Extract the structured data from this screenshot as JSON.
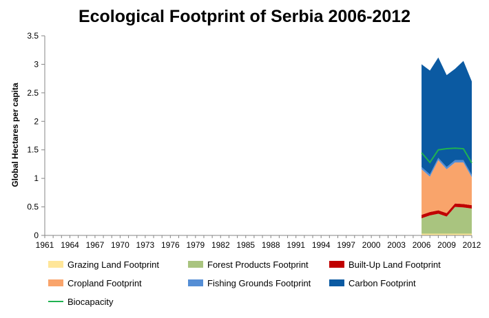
{
  "chart_data": {
    "type": "area",
    "title": "Ecological Footprint of Serbia 2006-2012",
    "ylabel": "Global Hectares per capita",
    "xlabel": "",
    "ylim": [
      0,
      3.5
    ],
    "yticks": [
      "0",
      "0.5",
      "1",
      "1.5",
      "2",
      "2.5",
      "3",
      "3.5"
    ],
    "xticks": [
      "1961",
      "1964",
      "1967",
      "1970",
      "1973",
      "1976",
      "1979",
      "1982",
      "1985",
      "1988",
      "1991",
      "1994",
      "1997",
      "2000",
      "2003",
      "2006",
      "2009",
      "2012"
    ],
    "x_range": [
      1961,
      2012
    ],
    "x": [
      2006,
      2007,
      2008,
      2009,
      2010,
      2011,
      2012
    ],
    "stacked": true,
    "legend_position": "bottom",
    "series": [
      {
        "name": "Grazing Land Footprint",
        "color": "#ffe699",
        "values": [
          0.03,
          0.03,
          0.03,
          0.03,
          0.03,
          0.03,
          0.03
        ]
      },
      {
        "name": "Forest Products Footprint",
        "color": "#a9c47f",
        "values": [
          0.27,
          0.32,
          0.35,
          0.3,
          0.47,
          0.46,
          0.44
        ]
      },
      {
        "name": "Built-Up Land Footprint",
        "color": "#c00000",
        "values": [
          0.06,
          0.06,
          0.06,
          0.06,
          0.06,
          0.06,
          0.06
        ]
      },
      {
        "name": "Cropland Footprint",
        "color": "#f9a46b",
        "values": [
          0.8,
          0.62,
          0.88,
          0.77,
          0.72,
          0.73,
          0.49
        ]
      },
      {
        "name": "Fishing Grounds Footprint",
        "color": "#558ed5",
        "values": [
          0.04,
          0.04,
          0.04,
          0.04,
          0.04,
          0.04,
          0.04
        ]
      },
      {
        "name": "Carbon Footprint",
        "color": "#0b5aa2",
        "values": [
          1.8,
          1.82,
          1.76,
          1.61,
          1.6,
          1.74,
          1.64
        ]
      },
      {
        "name": "Biocapacity",
        "color": "#1fb250",
        "type": "line",
        "values": [
          1.45,
          1.28,
          1.5,
          1.52,
          1.53,
          1.52,
          1.27
        ]
      }
    ]
  }
}
